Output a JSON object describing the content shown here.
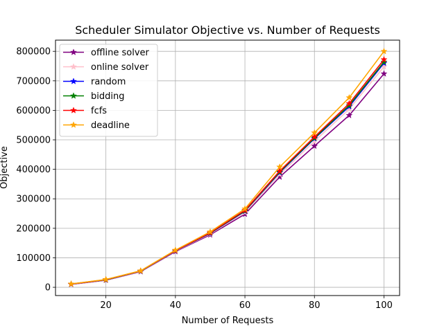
{
  "chart_data": {
    "type": "line",
    "title": "Scheduler Simulator Objective vs. Number of Requests",
    "xlabel": "Number of Requests",
    "ylabel": "Objective",
    "x": [
      10,
      20,
      30,
      40,
      50,
      60,
      70,
      80,
      90,
      100
    ],
    "xlim": [
      5.5,
      104.5
    ],
    "ylim": [
      -28000,
      838000
    ],
    "xticks": [
      20,
      40,
      60,
      80,
      100
    ],
    "xtick_labels": [
      "20",
      "40",
      "60",
      "80",
      "100"
    ],
    "yticks": [
      0,
      100000,
      200000,
      300000,
      400000,
      500000,
      600000,
      700000,
      800000
    ],
    "ytick_labels": [
      "0",
      "100000",
      "200000",
      "300000",
      "400000",
      "500000",
      "600000",
      "700000",
      "800000"
    ],
    "grid": true,
    "legend_position": "top-left",
    "marker": "star",
    "series": [
      {
        "name": "offline solver",
        "color": "#800080",
        "values": [
          10000,
          24000,
          53000,
          121000,
          178000,
          248000,
          374000,
          479000,
          583000,
          724000
        ]
      },
      {
        "name": "online solver",
        "color": "#ffc0cb",
        "values": [
          10500,
          25000,
          54000,
          122500,
          181000,
          254000,
          383000,
          495000,
          604000,
          748000
        ]
      },
      {
        "name": "random",
        "color": "#0000ff",
        "values": [
          11000,
          25500,
          55000,
          123500,
          183000,
          258000,
          389000,
          504000,
          613000,
          760000
        ]
      },
      {
        "name": "bidding",
        "color": "#008000",
        "values": [
          11000,
          25500,
          55000,
          124000,
          184000,
          259000,
          391000,
          506000,
          617000,
          764000
        ]
      },
      {
        "name": "fcfs",
        "color": "#ff0000",
        "values": [
          11000,
          26000,
          55500,
          124500,
          185000,
          261000,
          394000,
          510000,
          623000,
          772000
        ]
      },
      {
        "name": "deadline",
        "color": "#ffa500",
        "values": [
          11500,
          26500,
          56000,
          126000,
          188000,
          266000,
          408000,
          524000,
          643000,
          800000
        ]
      }
    ]
  }
}
